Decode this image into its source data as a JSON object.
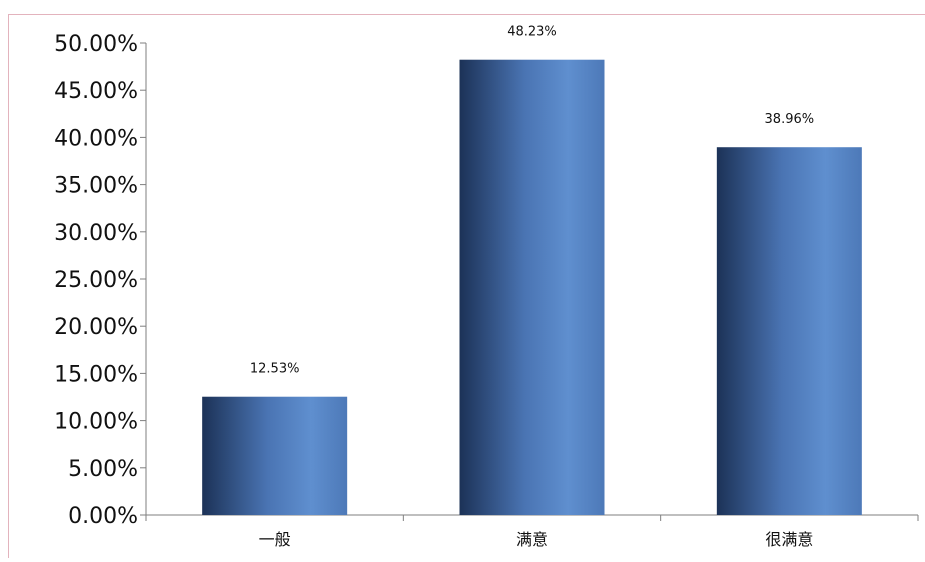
{
  "chart_data": {
    "type": "bar",
    "categories": [
      "一般",
      "满意",
      "很满意"
    ],
    "values": [
      12.53,
      48.23,
      38.96
    ],
    "data_labels": [
      "12.53%",
      "48.23%",
      "38.96%"
    ],
    "ylim": [
      0,
      50
    ],
    "yticks": [
      0,
      5,
      10,
      15,
      20,
      25,
      30,
      35,
      40,
      45,
      50
    ],
    "ytick_labels": [
      "0.00%",
      "5.00%",
      "10.00%",
      "15.00%",
      "20.00%",
      "25.00%",
      "30.00%",
      "35.00%",
      "40.00%",
      "45.00%",
      "50.00%"
    ],
    "grid": false,
    "legend": "none",
    "colors": {
      "bar_dark": "#1c3257",
      "bar_light": "#5f8fcf",
      "axis": "#7f7f7f"
    }
  }
}
